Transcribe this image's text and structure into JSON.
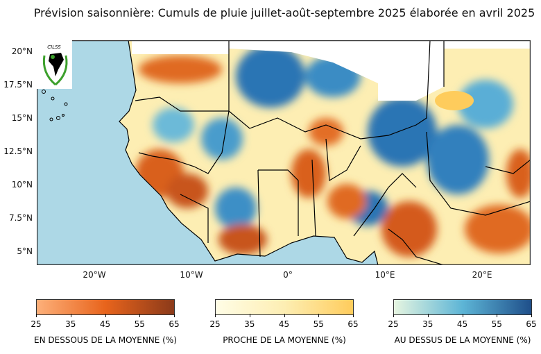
{
  "title": "Prévision saisonnière:  Cumuls de pluie juillet-août-septembre 2025 élaborée en avril 2025",
  "logo_text": "CILSS",
  "map": {
    "lat_ticks": [
      "20°N",
      "17.5°N",
      "15°N",
      "12.5°N",
      "10°N",
      "7.5°N",
      "5°N"
    ],
    "lon_ticks": [
      "20°W",
      "10°W",
      "0°",
      "10°E",
      "20°E"
    ],
    "colors": {
      "ocean": "#add8e6",
      "below": "#d9601a",
      "near": "#fdeeb3",
      "above": "#2a74b4",
      "masked": "#ffffff"
    }
  },
  "legends": [
    {
      "label": "EN DESSOUS DE LA MOYENNE (%)",
      "ticks": [
        "25",
        "35",
        "45",
        "55",
        "65"
      ],
      "from": "#fdb07a",
      "mid": "#e8641c",
      "to": "#8b3a1a"
    },
    {
      "label": "PROCHE DE LA MOYENNE (%)",
      "ticks": [
        "25",
        "35",
        "45",
        "55",
        "65"
      ],
      "from": "#fffde6",
      "mid": "#fdeeb3",
      "to": "#fecc5c"
    },
    {
      "label": "AU DESSUS DE LA MOYENNE (%)",
      "ticks": [
        "25",
        "35",
        "45",
        "55",
        "65"
      ],
      "from": "#e6f5e0",
      "mid": "#5db5d6",
      "to": "#1f4f8a"
    }
  ]
}
